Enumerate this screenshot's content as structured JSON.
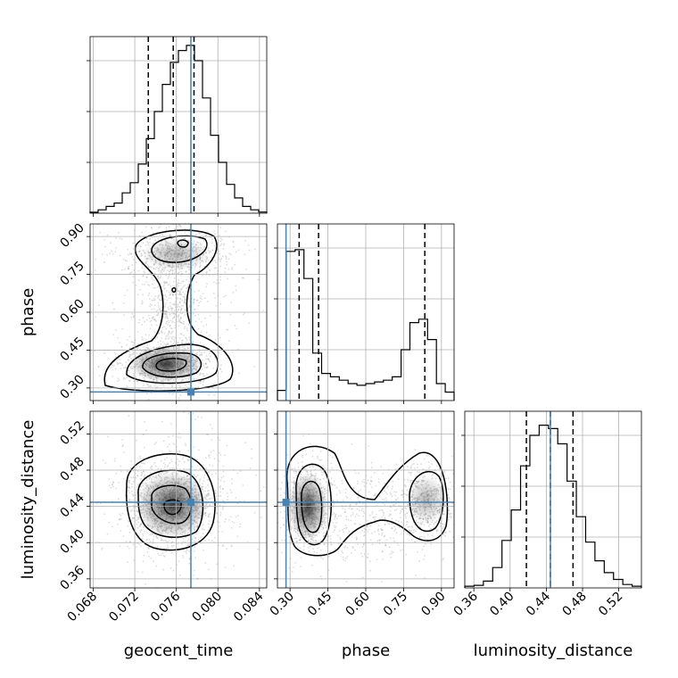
{
  "chart_data": {
    "type": "corner",
    "parameters": [
      "geocent_time",
      "phase",
      "luminosity_distance"
    ],
    "axis_labels": {
      "geocent_time": "geocent_time",
      "phase": "phase",
      "luminosity_distance": "luminosity_distance"
    },
    "ranges": {
      "geocent_time": [
        0.0677,
        0.0847
      ],
      "phase": [
        0.25,
        0.95
      ],
      "luminosity_distance": [
        0.35,
        0.545
      ]
    },
    "ticks": {
      "geocent_time": [
        "0.068",
        "0.072",
        "0.076",
        "0.080",
        "0.084"
      ],
      "phase": [
        "0.30",
        "0.45",
        "0.60",
        "0.75",
        "0.90"
      ],
      "luminosity_distance": [
        "0.36",
        "0.40",
        "0.44",
        "0.48",
        "0.52"
      ]
    },
    "truths": {
      "geocent_time": 0.0774,
      "phase": 0.284,
      "luminosity_distance": 0.4445
    },
    "quantiles": {
      "geocent_time": [
        0.0733,
        0.0757,
        0.0777
      ],
      "phase": [
        0.336,
        0.413,
        0.834
      ],
      "luminosity_distance": [
        0.418,
        0.4445,
        0.4695
      ]
    },
    "histograms": {
      "geocent_time": [
        0.006,
        0.02,
        0.04,
        0.06,
        0.12,
        0.18,
        0.29,
        0.44,
        0.6,
        0.76,
        0.89,
        0.96,
        0.99,
        0.9,
        0.68,
        0.46,
        0.3,
        0.17,
        0.09,
        0.04,
        0.02,
        0.007
      ],
      "phase": [
        0.06,
        0.88,
        0.89,
        0.72,
        0.28,
        0.16,
        0.14,
        0.12,
        0.1,
        0.09,
        0.1,
        0.11,
        0.12,
        0.14,
        0.3,
        0.46,
        0.48,
        0.36,
        0.1,
        0.05
      ],
      "luminosity_distance": [
        0.01,
        0.015,
        0.04,
        0.12,
        0.28,
        0.46,
        0.72,
        0.9,
        0.96,
        0.94,
        0.85,
        0.63,
        0.42,
        0.27,
        0.16,
        0.09,
        0.05,
        0.02,
        0.01
      ]
    },
    "colors": {
      "truth": "#4682b4",
      "grid": "#b0b0b0",
      "hist": "#000000",
      "density": "#000000"
    },
    "grid": true
  }
}
